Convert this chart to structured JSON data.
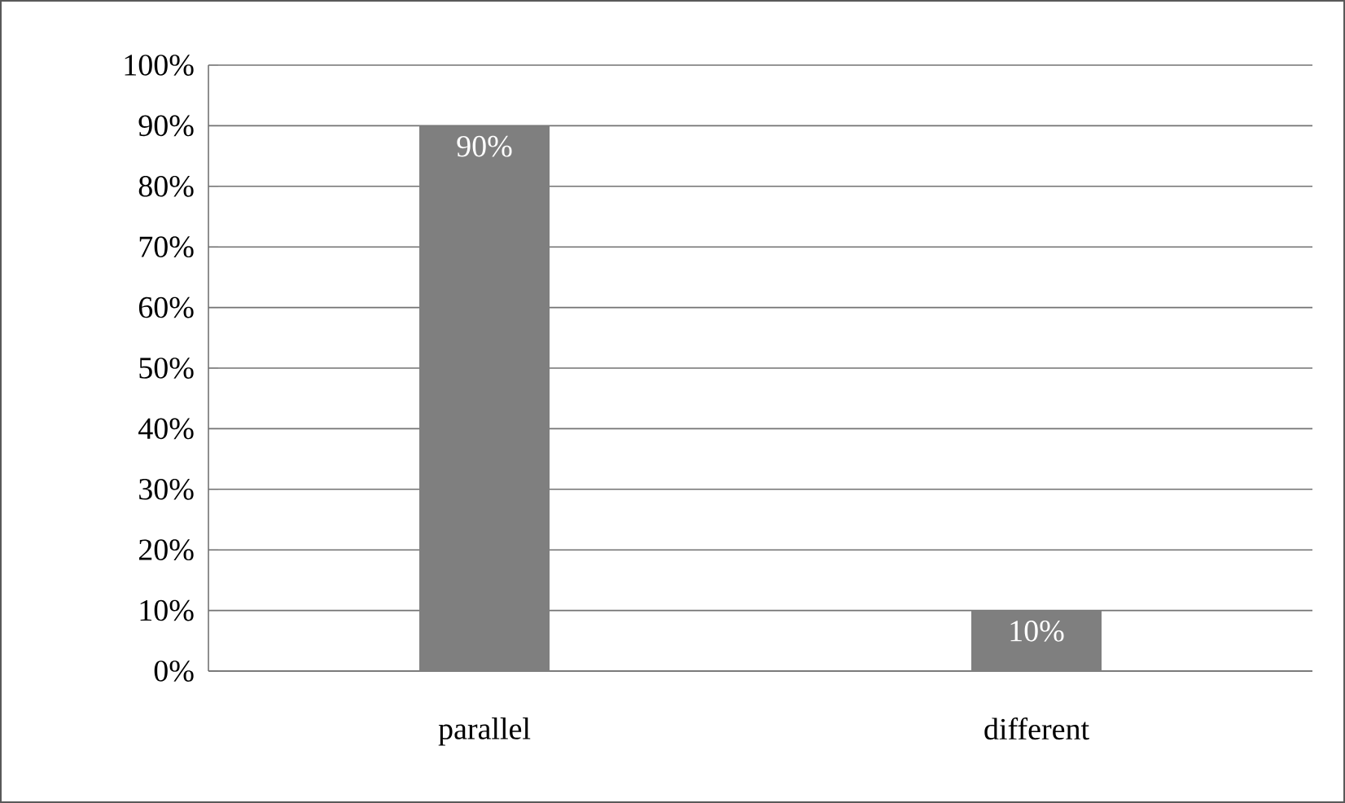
{
  "chart_data": {
    "type": "bar",
    "categories": [
      "parallel",
      "different"
    ],
    "values": [
      90,
      10
    ],
    "value_labels": [
      "90%",
      "10%"
    ],
    "color": "#7f7f7f",
    "ylim": [
      0,
      100
    ],
    "yticks": [
      {
        "value": 0,
        "label": "0%"
      },
      {
        "value": 10,
        "label": "10%"
      },
      {
        "value": 20,
        "label": "20%"
      },
      {
        "value": 30,
        "label": "30%"
      },
      {
        "value": 40,
        "label": "40%"
      },
      {
        "value": 50,
        "label": "50%"
      },
      {
        "value": 60,
        "label": "60%"
      },
      {
        "value": 70,
        "label": "70%"
      },
      {
        "value": 80,
        "label": "80%"
      },
      {
        "value": 90,
        "label": "90%"
      },
      {
        "value": 100,
        "label": "100%"
      }
    ],
    "grid": "y"
  }
}
